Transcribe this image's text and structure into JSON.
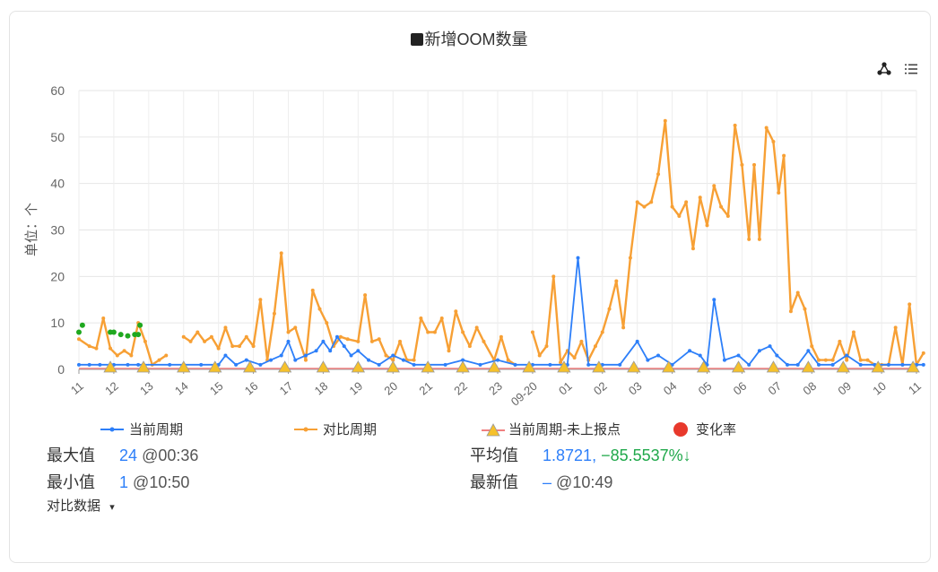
{
  "title": "新增OOM数量",
  "toolbar": {
    "graph_icon": "graph-icon",
    "list_icon": "list-icon"
  },
  "chart_data": {
    "type": "line",
    "ylabel": "单位：个",
    "ylim": [
      0,
      60
    ],
    "yticks": [
      0,
      10,
      20,
      30,
      40,
      50,
      60
    ],
    "xlim": [
      0,
      24
    ],
    "xticks": [
      "11",
      "12",
      "13",
      "14",
      "15",
      "16",
      "17",
      "18",
      "19",
      "20",
      "21",
      "22",
      "23",
      "09-20",
      "01",
      "02",
      "03",
      "04",
      "05",
      "06",
      "07",
      "08",
      "09",
      "10",
      "11"
    ],
    "colors": {
      "current": "#2d7ff9",
      "compare": "#f7a035",
      "missing": "#f6c12b",
      "rate": "#e8392c",
      "change": "#1fa81f"
    },
    "series": [
      {
        "name": "对比周期",
        "key": "compare",
        "points": [
          [
            0,
            6.5
          ],
          [
            0.3,
            5
          ],
          [
            0.5,
            4.5
          ],
          [
            0.7,
            11
          ],
          [
            0.9,
            4.5
          ],
          [
            1.1,
            3
          ],
          [
            1.3,
            4
          ],
          [
            1.5,
            3
          ],
          [
            1.7,
            10
          ],
          [
            1.9,
            6
          ],
          [
            2.1,
            1
          ],
          [
            2.3,
            2
          ],
          [
            2.5,
            3
          ],
          [
            null,
            null
          ],
          [
            3.0,
            7
          ],
          [
            3.2,
            6
          ],
          [
            3.4,
            8
          ],
          [
            3.6,
            6
          ],
          [
            3.8,
            7
          ],
          [
            4.0,
            4.5
          ],
          [
            4.2,
            9
          ],
          [
            4.4,
            5
          ],
          [
            4.6,
            5
          ],
          [
            4.8,
            7
          ],
          [
            5.0,
            5
          ],
          [
            5.2,
            15
          ],
          [
            5.4,
            2
          ],
          [
            5.6,
            12
          ],
          [
            5.8,
            25
          ],
          [
            6.0,
            8
          ],
          [
            6.2,
            9
          ],
          [
            6.5,
            2
          ],
          [
            6.7,
            17
          ],
          [
            6.9,
            13
          ],
          [
            7.1,
            10
          ],
          [
            7.3,
            5
          ],
          [
            7.5,
            7
          ],
          [
            7.7,
            6.5
          ],
          [
            8.0,
            6
          ],
          [
            8.2,
            16
          ],
          [
            8.4,
            6
          ],
          [
            8.6,
            6.5
          ],
          [
            8.8,
            3
          ],
          [
            9.0,
            2
          ],
          [
            9.2,
            6
          ],
          [
            9.4,
            2
          ],
          [
            9.6,
            2
          ],
          [
            9.8,
            11
          ],
          [
            10.0,
            8
          ],
          [
            10.2,
            8
          ],
          [
            10.4,
            11
          ],
          [
            10.6,
            4
          ],
          [
            10.8,
            12.5
          ],
          [
            11.0,
            8
          ],
          [
            11.2,
            5
          ],
          [
            11.4,
            9
          ],
          [
            11.6,
            6
          ],
          [
            11.9,
            2
          ],
          [
            12.1,
            7
          ],
          [
            12.3,
            2
          ],
          [
            12.5,
            1
          ],
          [
            null,
            null
          ],
          [
            13.0,
            8
          ],
          [
            13.2,
            3
          ],
          [
            13.4,
            5
          ],
          [
            13.6,
            20
          ],
          [
            13.8,
            1.5
          ],
          [
            14.0,
            4
          ],
          [
            14.2,
            2.5
          ],
          [
            14.4,
            6
          ],
          [
            14.6,
            2
          ],
          [
            14.8,
            5
          ],
          [
            15.0,
            8
          ],
          [
            15.2,
            13
          ],
          [
            15.4,
            19
          ],
          [
            15.6,
            9
          ],
          [
            15.8,
            24
          ],
          [
            16.0,
            36
          ],
          [
            16.2,
            35
          ],
          [
            16.4,
            36
          ],
          [
            16.6,
            42
          ],
          [
            16.8,
            53.5
          ],
          [
            17.0,
            35
          ],
          [
            17.2,
            33
          ],
          [
            17.4,
            36
          ],
          [
            17.6,
            26
          ],
          [
            17.8,
            37
          ],
          [
            18.0,
            31
          ],
          [
            18.2,
            39.5
          ],
          [
            18.4,
            35
          ],
          [
            18.6,
            33
          ],
          [
            18.8,
            52.5
          ],
          [
            19.0,
            44
          ],
          [
            19.2,
            28
          ],
          [
            19.35,
            44
          ],
          [
            19.5,
            28
          ],
          [
            19.7,
            52
          ],
          [
            19.9,
            49
          ],
          [
            20.05,
            38
          ],
          [
            20.2,
            46
          ],
          [
            20.4,
            12.5
          ],
          [
            20.6,
            16.5
          ],
          [
            20.8,
            13
          ],
          [
            21.0,
            5
          ],
          [
            21.2,
            2
          ],
          [
            21.4,
            2
          ],
          [
            21.6,
            2
          ],
          [
            21.8,
            6
          ],
          [
            22.0,
            2
          ],
          [
            22.2,
            8
          ],
          [
            22.4,
            2
          ],
          [
            22.6,
            2
          ],
          [
            22.8,
            1
          ],
          [
            23.0,
            1
          ],
          [
            23.2,
            1
          ],
          [
            23.4,
            9
          ],
          [
            23.6,
            1
          ],
          [
            23.8,
            14
          ],
          [
            24.0,
            1
          ],
          [
            24.2,
            3.5
          ]
        ]
      },
      {
        "name": "当前周期",
        "key": "current",
        "points": [
          [
            0,
            1
          ],
          [
            0.3,
            1
          ],
          [
            0.6,
            1
          ],
          [
            1.0,
            1
          ],
          [
            1.4,
            1
          ],
          [
            1.7,
            1
          ],
          [
            2.6,
            1
          ],
          [
            3.0,
            1
          ],
          [
            3.5,
            1
          ],
          [
            4.0,
            1
          ],
          [
            4.2,
            3
          ],
          [
            4.5,
            1
          ],
          [
            4.8,
            2
          ],
          [
            5.2,
            1
          ],
          [
            5.5,
            2
          ],
          [
            5.8,
            3
          ],
          [
            6.0,
            6
          ],
          [
            6.2,
            2
          ],
          [
            6.5,
            3
          ],
          [
            6.8,
            4
          ],
          [
            7.0,
            6
          ],
          [
            7.2,
            4
          ],
          [
            7.4,
            7
          ],
          [
            7.6,
            5
          ],
          [
            7.8,
            3
          ],
          [
            8.0,
            4
          ],
          [
            8.3,
            2
          ],
          [
            8.6,
            1
          ],
          [
            9.0,
            3
          ],
          [
            9.3,
            2
          ],
          [
            9.6,
            1
          ],
          [
            10.0,
            1
          ],
          [
            10.5,
            1
          ],
          [
            11.0,
            2
          ],
          [
            11.5,
            1
          ],
          [
            12.0,
            2
          ],
          [
            12.5,
            1
          ],
          [
            13.0,
            1
          ],
          [
            13.5,
            1
          ],
          [
            14.0,
            1
          ],
          [
            14.3,
            24
          ],
          [
            14.6,
            1
          ],
          [
            15.0,
            1
          ],
          [
            15.5,
            1
          ],
          [
            16.0,
            6
          ],
          [
            16.3,
            2
          ],
          [
            16.6,
            3
          ],
          [
            17.0,
            1
          ],
          [
            17.5,
            4
          ],
          [
            17.8,
            3
          ],
          [
            18.0,
            1
          ],
          [
            18.2,
            15
          ],
          [
            18.5,
            2
          ],
          [
            18.9,
            3
          ],
          [
            19.2,
            1
          ],
          [
            19.5,
            4
          ],
          [
            19.8,
            5
          ],
          [
            20.0,
            3
          ],
          [
            20.3,
            1
          ],
          [
            20.6,
            1
          ],
          [
            20.9,
            4
          ],
          [
            21.2,
            1
          ],
          [
            21.6,
            1
          ],
          [
            22.0,
            3
          ],
          [
            22.4,
            1
          ],
          [
            22.8,
            1
          ],
          [
            23.2,
            1
          ],
          [
            23.6,
            1
          ],
          [
            24.0,
            1
          ],
          [
            24.2,
            1
          ]
        ]
      }
    ],
    "change_points": [
      [
        0,
        8
      ],
      [
        0.1,
        9.5
      ],
      [
        0.9,
        8
      ],
      [
        1.0,
        8
      ],
      [
        1.2,
        7.5
      ],
      [
        1.4,
        7.2
      ],
      [
        1.6,
        7.5
      ],
      [
        1.7,
        7.5
      ],
      [
        1.75,
        9.5
      ]
    ],
    "missing_points": [
      0.9,
      1.85,
      3.0,
      3.9,
      4.9,
      5.9,
      7.0,
      8.0,
      9.0,
      10.0,
      11.0,
      11.9,
      12.9,
      13.9,
      14.9,
      15.9,
      16.9,
      17.9,
      18.9,
      19.9,
      20.9,
      21.9,
      22.9,
      23.9
    ],
    "legend": [
      {
        "key": "current",
        "label": "当前周期"
      },
      {
        "key": "compare",
        "label": "对比周期"
      },
      {
        "key": "missing",
        "label": "当前周期-未上报点"
      },
      {
        "key": "rate",
        "label": "变化率"
      }
    ]
  },
  "stats": {
    "max_label": "最大值",
    "max_value": "24",
    "max_time": "@00:36",
    "min_label": "最小值",
    "min_value": "1",
    "min_time": "@10:50",
    "avg_label": "平均值",
    "avg_value": "1.8721,",
    "avg_change": "−85.5537%↓",
    "latest_label": "最新值",
    "latest_value": "–",
    "latest_time": "@10:49"
  },
  "compare_toggle": {
    "label": "对比数据",
    "arrow": "▾"
  }
}
